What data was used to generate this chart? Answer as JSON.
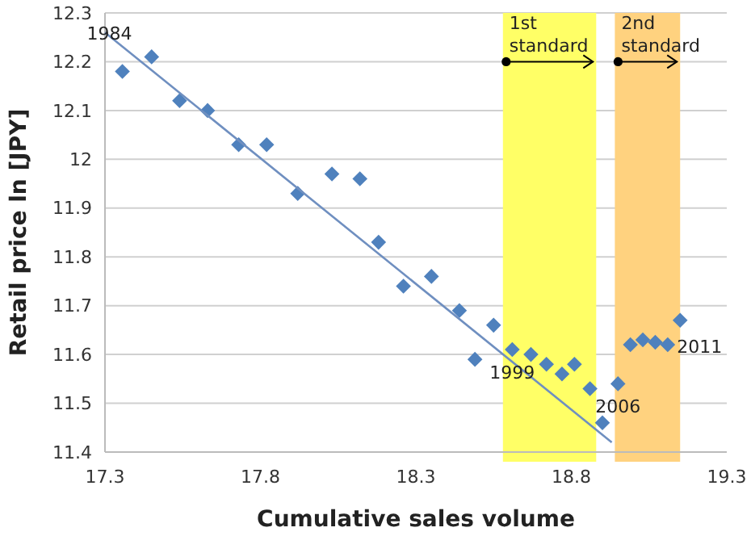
{
  "chart_data": {
    "type": "scatter",
    "xlabel": "Cumulative sales volume",
    "ylabel": "Retail price ln [JPY]",
    "xlim": [
      17.3,
      19.3
    ],
    "xticks": [
      17.3,
      17.8,
      18.3,
      18.8,
      19.3
    ],
    "ylim": [
      11.4,
      12.3
    ],
    "yticks": [
      11.4,
      11.5,
      11.6,
      11.7,
      11.8,
      11.9,
      {
        "value": 12,
        "label": "12"
      },
      12.1,
      12.2,
      12.3
    ],
    "grid": "y",
    "series": [
      {
        "color": "#4f81bd",
        "marker": "diamond",
        "x": [
          17.356,
          17.45,
          17.54,
          17.63,
          17.73,
          17.82,
          17.92,
          18.03,
          18.12,
          18.18,
          18.26,
          18.35,
          18.44,
          18.49,
          18.55,
          18.61,
          18.67,
          18.72,
          18.77,
          18.81,
          18.86,
          18.9,
          18.95,
          18.99,
          19.03,
          19.07,
          19.11,
          19.15
        ],
        "values": [
          12.18,
          12.21,
          12.12,
          12.1,
          12.03,
          12.03,
          11.93,
          11.97,
          11.96,
          11.83,
          11.74,
          11.76,
          11.69,
          11.59,
          11.66,
          11.61,
          11.6,
          11.58,
          11.56,
          11.58,
          11.53,
          11.46,
          11.54,
          11.62,
          11.63,
          11.625,
          11.62,
          11.67
        ]
      },
      {
        "type": "line",
        "color": "#6f8fc0",
        "x": [
          17.3,
          18.93
        ],
        "values": [
          12.26,
          11.42
        ]
      }
    ],
    "bands": [
      {
        "axis": "x",
        "from": 18.58,
        "to": 18.88,
        "label": "1st standard",
        "color": "#ffff66"
      },
      {
        "axis": "x",
        "from": 18.94,
        "to": 19.15,
        "label": "2nd standard",
        "color": "#ffd27f"
      }
    ],
    "annotations": [
      {
        "text": "1984",
        "x": 17.356,
        "y": 12.18
      },
      {
        "text": "1999",
        "x": 18.61,
        "y": 11.61
      },
      {
        "text": "2006",
        "x": 18.95,
        "y": 11.54
      },
      {
        "text": "2011",
        "x": 19.15,
        "y": 11.67
      }
    ]
  }
}
